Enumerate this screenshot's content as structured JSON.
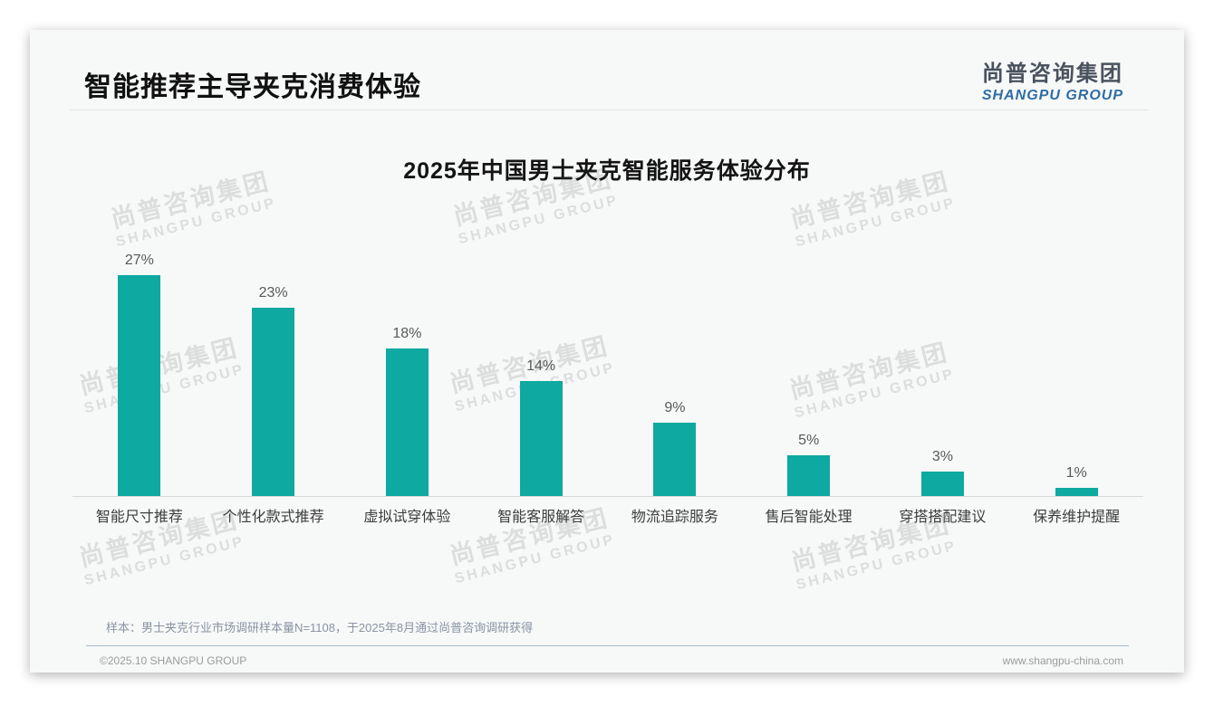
{
  "page": {
    "header": {
      "title": "智能推荐主导夹克消费体验",
      "logo_cn": "尚普咨询集团",
      "logo_en": "SHANGPU GROUP"
    },
    "watermark": {
      "line1": "尚普咨询集团",
      "line2": "SHANGPU GROUP"
    },
    "footer": {
      "note": "样本：男士夹克行业市场调研样本量N=1108，于2025年8月通过尚普咨询调研获得",
      "copyright": "©2025.10 SHANGPU GROUP",
      "website": "www.shangpu-china.com"
    }
  },
  "chart_data": {
    "type": "bar",
    "title": "2025年中国男士夹克智能服务体验分布",
    "categories": [
      "智能尺寸推荐",
      "个性化款式推荐",
      "虚拟试穿体验",
      "智能客服解答",
      "物流追踪服务",
      "售后智能处理",
      "穿搭搭配建议",
      "保养维护提醒"
    ],
    "values": [
      27,
      23,
      18,
      14,
      9,
      5,
      3,
      1
    ],
    "value_labels": [
      "27%",
      "23%",
      "18%",
      "14%",
      "9%",
      "5%",
      "3%",
      "1%"
    ],
    "unit": "%",
    "bar_color": "#0ea9a1",
    "xlabel": "",
    "ylabel": "",
    "ylim": [
      0,
      30
    ],
    "grid": false,
    "legend": false
  }
}
